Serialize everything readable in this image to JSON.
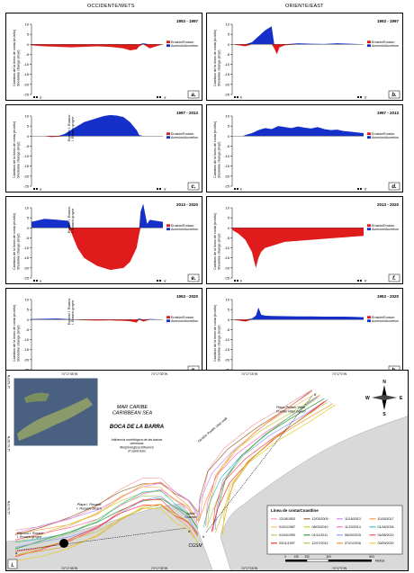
{
  "columns": {
    "left": "OCCIDENTE/WETS",
    "right": "ORIENTE/EAST"
  },
  "common": {
    "ylabel": "Cambios de la línea de costa (m/año)\nShoreline change (m/yr)",
    "y_ticks": [
      "10",
      "5",
      "0",
      "-5",
      "-10",
      "-15",
      "-20",
      "-25"
    ],
    "legend_erosion": "Erosión/Erosion",
    "legend_accretion": "Acreción/Accretion",
    "endpoint_left": "a",
    "endpoint_right": "a'",
    "endpoint_right_b": "b'",
    "endpoint_left_b": "b",
    "colors": {
      "erosion": "#e01b1b",
      "accretion": "#1530c8"
    }
  },
  "chart_data": [
    {
      "id": "a",
      "type": "area",
      "period": "1953 - 1997",
      "ylim": [
        -25,
        10
      ],
      "x": [
        0,
        0.1,
        0.2,
        0.3,
        0.4,
        0.5,
        0.6,
        0.7,
        0.75,
        0.8,
        0.82,
        0.85,
        0.9,
        1
      ],
      "values": [
        -0.5,
        -1,
        -1.2,
        -1.5,
        -1.2,
        -1,
        -1.3,
        -2,
        -3,
        -2.5,
        -1,
        0.5,
        -2,
        0
      ]
    },
    {
      "id": "b",
      "type": "area",
      "period": "1953 - 1997",
      "ylim": [
        -25,
        10
      ],
      "x": [
        0,
        0.05,
        0.1,
        0.15,
        0.2,
        0.25,
        0.3,
        0.32,
        0.34,
        0.36,
        0.4,
        0.5,
        0.6,
        0.7,
        0.8,
        0.9,
        1
      ],
      "values": [
        0,
        -0.5,
        -1,
        1,
        4,
        7,
        9,
        -2,
        -5,
        -1.5,
        -0.5,
        0.5,
        0.3,
        0.2,
        0.5,
        0.3,
        0
      ]
    },
    {
      "id": "c",
      "type": "area",
      "period": "1997 - 2013",
      "ylim": [
        -25,
        10
      ],
      "groyne_label": "Espolón I. Rosario\nI. Rosario groyne",
      "x": [
        0,
        0.1,
        0.15,
        0.2,
        0.25,
        0.3,
        0.35,
        0.4,
        0.5,
        0.55,
        0.6,
        0.65,
        0.7,
        0.75,
        0.8,
        0.82,
        0.85,
        1
      ],
      "values": [
        0,
        0,
        -0.5,
        -0.3,
        1,
        3,
        5,
        7,
        9,
        10,
        10.5,
        10.2,
        9.5,
        7,
        3,
        0.5,
        0,
        0
      ]
    },
    {
      "id": "d",
      "type": "area",
      "period": "1997 - 2013",
      "ylim": [
        -25,
        10
      ],
      "x": [
        0,
        0.08,
        0.1,
        0.15,
        0.2,
        0.25,
        0.3,
        0.35,
        0.4,
        0.45,
        0.5,
        0.55,
        0.6,
        0.65,
        0.7,
        0.75,
        0.8,
        0.85,
        0.9,
        0.95,
        1
      ],
      "values": [
        0,
        0,
        0.5,
        1.5,
        3,
        4,
        3.5,
        5,
        4.5,
        4,
        4.8,
        4.2,
        3.8,
        4.5,
        3.5,
        3,
        3.2,
        2.5,
        2.2,
        1.8,
        1.5
      ]
    },
    {
      "id": "e",
      "type": "area",
      "period": "2013 - 2020",
      "ylim": [
        -25,
        10
      ],
      "groyne_label": "Espolón I. Rosario\nI. Rosario groyne",
      "x": [
        0,
        0.1,
        0.2,
        0.28,
        0.3,
        0.35,
        0.4,
        0.5,
        0.6,
        0.7,
        0.75,
        0.8,
        0.82,
        0.83,
        0.85,
        0.88,
        0.9,
        1
      ],
      "values": [
        3,
        4.5,
        4,
        3.5,
        -2,
        -10,
        -15,
        -19,
        -21,
        -20,
        -17,
        -10,
        -3,
        8,
        12,
        2,
        4,
        3
      ]
    },
    {
      "id": "f",
      "type": "area",
      "period": "2013 - 2020",
      "ylim": [
        -25,
        10
      ],
      "x": [
        0,
        0.05,
        0.1,
        0.15,
        0.18,
        0.2,
        0.22,
        0.25,
        0.3,
        0.35,
        0.4,
        0.5,
        0.6,
        0.7,
        0.8,
        0.9,
        1
      ],
      "values": [
        -1,
        -3,
        -6,
        -12,
        -20,
        -15,
        -12,
        -10,
        -9,
        -8,
        -7,
        -6.5,
        -6,
        -5.5,
        -5,
        -4.5,
        -4
      ]
    },
    {
      "id": "g",
      "type": "area",
      "period": "1953 - 2020",
      "ylim": [
        -25,
        10
      ],
      "groyne_label": "Espolón I. Rosario\nI. Rosario groyne",
      "x": [
        0,
        0.2,
        0.3,
        0.4,
        0.5,
        0.6,
        0.7,
        0.75,
        0.8,
        0.82,
        0.85,
        0.9,
        1
      ],
      "values": [
        0.3,
        0.5,
        0.2,
        -0.3,
        -0.5,
        -0.4,
        -0.6,
        -0.8,
        -1.5,
        0.5,
        -1,
        0.3,
        0
      ]
    },
    {
      "id": "h",
      "type": "area",
      "period": "1953 - 2020",
      "ylim": [
        -25,
        10
      ],
      "x": [
        0,
        0.05,
        0.1,
        0.15,
        0.18,
        0.2,
        0.22,
        0.25,
        0.3,
        0.4,
        0.5,
        0.6,
        0.7,
        0.8,
        0.9,
        1
      ],
      "values": [
        0,
        -0.5,
        -1,
        0.5,
        2,
        6,
        2.5,
        2,
        1.8,
        1.7,
        1.6,
        1.6,
        1.5,
        1.5,
        1.4,
        1.2
      ]
    }
  ],
  "map": {
    "panel_letter": "i",
    "labels": {
      "sea": "MAR CARIBE\nCARIBBEAN SEA",
      "boca": "BOCA DE LA BARRA",
      "influence": "Influencia morfológica de las barras\narenosas\nMorphological influence\nof sand bars",
      "playa_rosario": "Playa I. Rosario\nI. Rosario beach",
      "espolon": "Espolón I. Rosario\nI. Rosario groyne",
      "playa_viejo": "Playa Pueblo Viejo\nPueblo Viejo beach",
      "gestion": "Gestión Pueblo Viejo walk",
      "canal": "Canal\nChannel",
      "cgsm": "CGSM",
      "point_a": "a",
      "point_aprime": "a'",
      "point_b": "b",
      "point_bprime": "b'",
      "meters": "Metros"
    },
    "lat_ticks": [
      "11°02'0\"N",
      "11°01'30\"N",
      "11°01'0\"N"
    ],
    "lon_ticks": [
      "74°17'45\"W",
      "74°17'30\"W",
      "74°17'15\"W",
      "74°17'0\"W"
    ],
    "compass": [
      "N",
      "S",
      "E",
      "W"
    ],
    "scale_ticks": [
      "0",
      "125",
      "250",
      "400",
      "800"
    ],
    "legend_title": "Línea de costa/Coastline",
    "legend_items": [
      {
        "date": "12/18/1953",
        "color": "#f4a6a6"
      },
      {
        "date": "12/03/2009",
        "color": "#9e6b3c"
      },
      {
        "date": "11/18/2013",
        "color": "#d18aff"
      },
      {
        "date": "10/18/2017",
        "color": "#ff9a3d"
      },
      {
        "date": "01/01/1987",
        "color": "#f7c27a"
      },
      {
        "date": "08/03/2010",
        "color": "#cfcf3f"
      },
      {
        "date": "11/23/2014",
        "color": "#ff70c8"
      },
      {
        "date": "01/18/2018",
        "color": "#3bc4c4"
      },
      {
        "date": "01/04/1990",
        "color": "#a0d86a"
      },
      {
        "date": "01/11/2011",
        "color": "#3a9a3a"
      },
      {
        "date": "06/20/2015",
        "color": "#8fa0ff"
      },
      {
        "date": "04/08/2019",
        "color": "#ff4d4d"
      },
      {
        "date": "03/11/1997",
        "color": "#ff3030"
      },
      {
        "date": "12/27/2012",
        "color": "#c0c040"
      },
      {
        "date": "07/21/2016",
        "color": "#e6a030"
      },
      {
        "date": "03/09/2020",
        "color": "#e0d030"
      }
    ]
  }
}
